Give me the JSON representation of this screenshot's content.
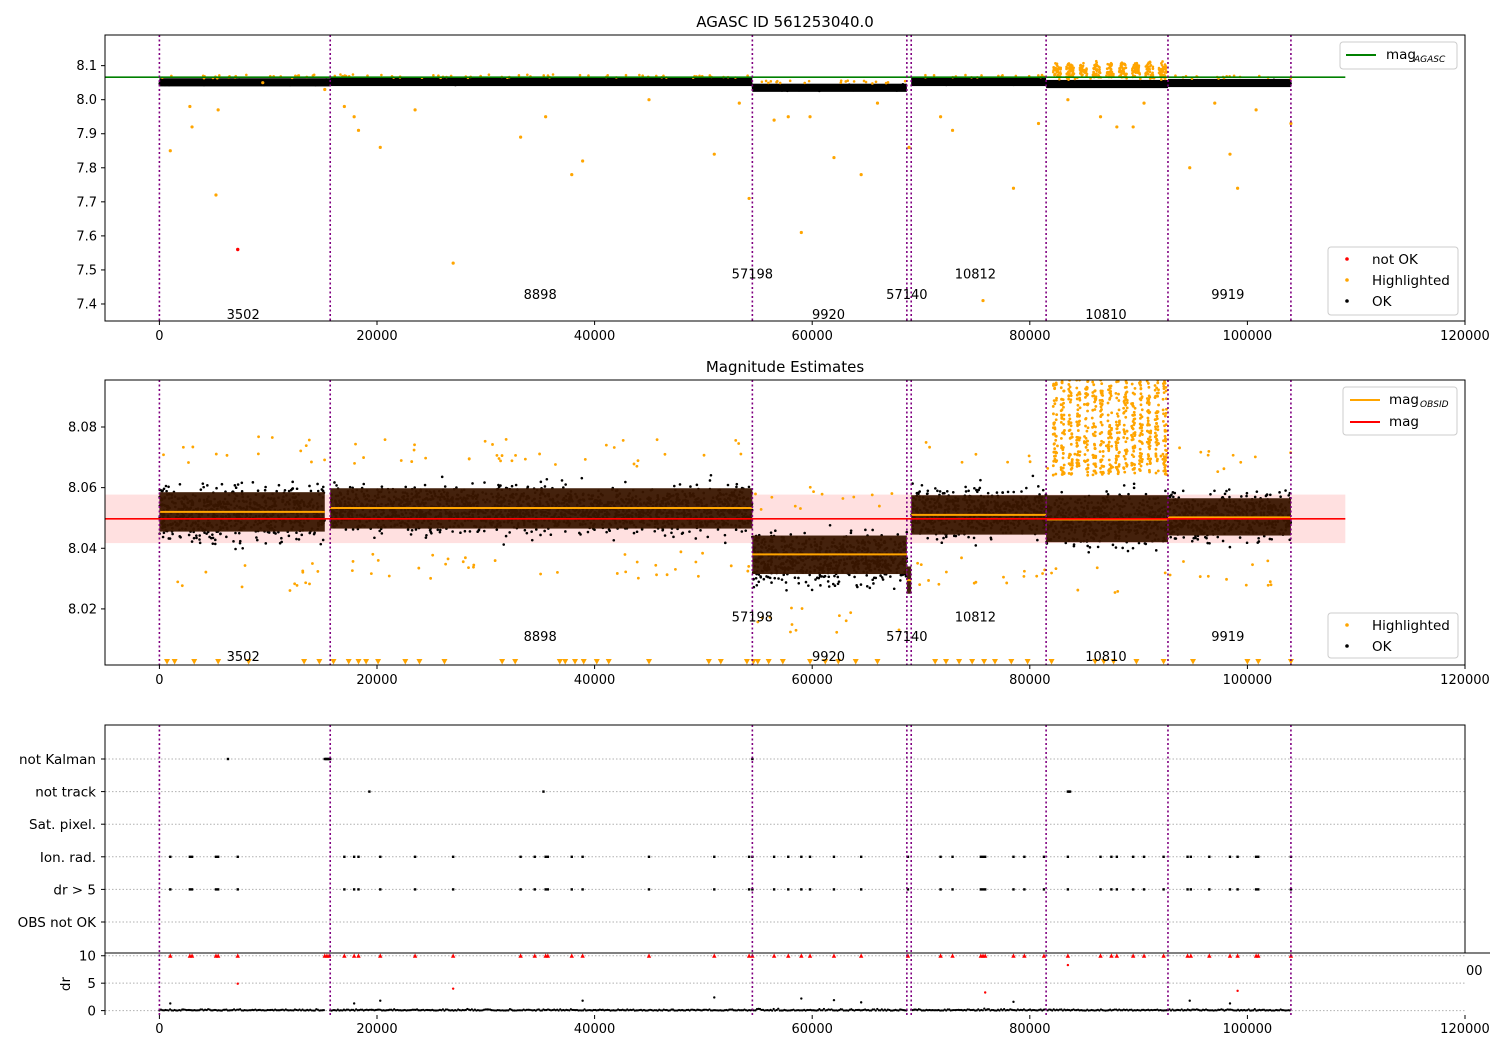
{
  "colors": {
    "ok": "#000000",
    "highlighted": "#ffa500",
    "not_ok": "#ff0000",
    "obsid_line": "#800080",
    "mag_agasc": "#008000",
    "mag_obsid": "#ffa500",
    "mag": "#ff0000",
    "mag_band": "#ffcccc",
    "obsid_band": "#3a1600",
    "grid": "#b0b0b0"
  },
  "chart_data": [
    {
      "type": "scatter",
      "title": "AGASC ID 561253040.0",
      "xlim": [
        -5000,
        120000
      ],
      "ylim": [
        7.35,
        8.19
      ],
      "x_ticks": [
        0,
        20000,
        40000,
        60000,
        80000,
        100000,
        120000
      ],
      "x_tick_labels": [
        "0",
        "20000",
        "40000",
        "60000",
        "80000",
        "100000",
        "120000"
      ],
      "y_ticks": [
        7.4,
        7.5,
        7.6,
        7.7,
        7.8,
        7.9,
        8.0,
        8.1
      ],
      "y_tick_labels": [
        "7.4",
        "7.5",
        "7.6",
        "7.7",
        "7.8",
        "7.9",
        "8.0",
        "8.1"
      ],
      "obsid_boundaries": [
        0,
        15700,
        54500,
        68700,
        69100,
        81500,
        92700,
        104000
      ],
      "obsid_labels": [
        {
          "label": "3502",
          "x": 7700,
          "y": 7.37
        },
        {
          "label": "8898",
          "x": 35000,
          "y": 7.43
        },
        {
          "label": "57198",
          "x": 54500,
          "y": 7.49
        },
        {
          "label": "9920",
          "x": 61500,
          "y": 7.37
        },
        {
          "label": "57140",
          "x": 68700,
          "y": 7.43
        },
        {
          "label": "10812",
          "x": 75000,
          "y": 7.49
        },
        {
          "label": "10810",
          "x": 87000,
          "y": 7.37
        },
        {
          "label": "9919",
          "x": 98200,
          "y": 7.43
        }
      ],
      "bands": [
        {
          "x0": 0,
          "x1": 15700,
          "center": 8.051,
          "spread": 0.012
        },
        {
          "x0": 15700,
          "x1": 54500,
          "center": 8.052,
          "spread": 0.012
        },
        {
          "x0": 54500,
          "x1": 68700,
          "center": 8.035,
          "spread": 0.012
        },
        {
          "x0": 69100,
          "x1": 81500,
          "center": 8.052,
          "spread": 0.012
        },
        {
          "x0": 81500,
          "x1": 92700,
          "center": 8.046,
          "spread": 0.012
        },
        {
          "x0": 92700,
          "x1": 104000,
          "center": 8.049,
          "spread": 0.012
        }
      ],
      "lines": [
        {
          "name": "mag_{AGASC}",
          "y": 8.066,
          "x0": -5000,
          "x1": 109000
        }
      ],
      "highlighted_points": [
        [
          1000,
          7.85
        ],
        [
          2800,
          7.98
        ],
        [
          3000,
          7.92
        ],
        [
          5200,
          7.72
        ],
        [
          5400,
          7.97
        ],
        [
          9500,
          8.05
        ],
        [
          15200,
          8.03
        ],
        [
          17000,
          7.98
        ],
        [
          17900,
          7.95
        ],
        [
          18300,
          7.91
        ],
        [
          20300,
          7.86
        ],
        [
          23500,
          7.97
        ],
        [
          27000,
          7.52
        ],
        [
          33200,
          7.89
        ],
        [
          35500,
          7.95
        ],
        [
          37900,
          7.78
        ],
        [
          38900,
          7.82
        ],
        [
          45000,
          8.0
        ],
        [
          51000,
          7.84
        ],
        [
          53300,
          7.99
        ],
        [
          54200,
          7.71
        ],
        [
          56500,
          7.94
        ],
        [
          57800,
          7.95
        ],
        [
          59000,
          7.61
        ],
        [
          59800,
          7.95
        ],
        [
          62000,
          7.83
        ],
        [
          64500,
          7.78
        ],
        [
          66000,
          7.99
        ],
        [
          68900,
          7.86
        ],
        [
          71800,
          7.95
        ],
        [
          72900,
          7.91
        ],
        [
          75700,
          7.41
        ],
        [
          78500,
          7.74
        ],
        [
          80800,
          7.93
        ],
        [
          83500,
          8.0
        ],
        [
          86500,
          7.95
        ],
        [
          88000,
          7.92
        ],
        [
          89500,
          7.92
        ],
        [
          90500,
          7.99
        ],
        [
          94700,
          7.8
        ],
        [
          97000,
          7.99
        ],
        [
          98400,
          7.84
        ],
        [
          99100,
          7.74
        ],
        [
          100800,
          7.97
        ],
        [
          104000,
          7.93
        ]
      ],
      "not_ok_points": [
        [
          7200,
          7.56
        ]
      ],
      "spike_segment": {
        "x0": 82000,
        "x1": 92700,
        "top": 8.115
      },
      "legend_lines": [
        {
          "label": "mag",
          "sub": "AGASC"
        }
      ],
      "legend_markers": [
        {
          "label": "not OK",
          "color_key": "not_ok"
        },
        {
          "label": "Highlighted",
          "color_key": "highlighted"
        },
        {
          "label": "OK",
          "color_key": "ok"
        }
      ]
    },
    {
      "type": "scatter",
      "title": "Magnitude Estimates",
      "xlim": [
        -5000,
        120000
      ],
      "ylim": [
        8.0015,
        8.0955
      ],
      "x_ticks": [
        0,
        20000,
        40000,
        60000,
        80000,
        100000,
        120000
      ],
      "x_tick_labels": [
        "0",
        "20000",
        "40000",
        "60000",
        "80000",
        "100000",
        "120000"
      ],
      "y_ticks": [
        8.02,
        8.04,
        8.06,
        8.08
      ],
      "y_tick_labels": [
        "8.02",
        "8.04",
        "8.06",
        "8.08"
      ],
      "obsid_boundaries": [
        0,
        15700,
        54500,
        68700,
        69100,
        81500,
        92700,
        104000
      ],
      "obsid_labels": [
        {
          "label": "3502",
          "x": 7700,
          "y": 8.0045
        },
        {
          "label": "8898",
          "x": 35000,
          "y": 8.011
        },
        {
          "label": "57198",
          "x": 54500,
          "y": 8.0175
        },
        {
          "label": "9920",
          "x": 61500,
          "y": 8.0045
        },
        {
          "label": "57140",
          "x": 68700,
          "y": 8.011
        },
        {
          "label": "10812",
          "x": 75000,
          "y": 8.0175
        },
        {
          "label": "10810",
          "x": 87000,
          "y": 8.0045
        },
        {
          "label": "9919",
          "x": 98200,
          "y": 8.011
        }
      ],
      "mag": {
        "value": 8.0497,
        "band": [
          8.0417,
          8.0577
        ],
        "x0": -5000,
        "x1": 109000
      },
      "mag_obsid": [
        {
          "x0": 0,
          "x1": 15200,
          "value": 8.052,
          "band": [
            8.0455,
            8.0585
          ]
        },
        {
          "x0": 15700,
          "x1": 54500,
          "value": 8.0533,
          "band": [
            8.0465,
            8.0598
          ]
        },
        {
          "x0": 54500,
          "x1": 68700,
          "value": 8.038,
          "band": [
            8.0315,
            8.0442
          ]
        },
        {
          "x0": 68700,
          "x1": 69100,
          "value": 8.0295,
          "band": [
            8.025,
            8.034
          ]
        },
        {
          "x0": 69100,
          "x1": 81500,
          "value": 8.051,
          "band": [
            8.0445,
            8.0575
          ]
        },
        {
          "x0": 81500,
          "x1": 92700,
          "value": 8.0495,
          "band": [
            8.042,
            8.0575
          ]
        },
        {
          "x0": 92700,
          "x1": 104000,
          "value": 8.0502,
          "band": [
            8.0442,
            8.0565
          ]
        }
      ],
      "clouds": [
        {
          "x0": 0,
          "x1": 15200,
          "lo": 8.035,
          "hi": 8.068
        },
        {
          "x0": 15700,
          "x1": 54500,
          "lo": 8.039,
          "hi": 8.067
        },
        {
          "x0": 54500,
          "x1": 68700,
          "lo": 8.021,
          "hi": 8.052
        },
        {
          "x0": 69100,
          "x1": 81500,
          "lo": 8.037,
          "hi": 8.067
        },
        {
          "x0": 81500,
          "x1": 92700,
          "lo": 8.034,
          "hi": 8.065
        },
        {
          "x0": 92700,
          "x1": 104000,
          "lo": 8.036,
          "hi": 8.065
        }
      ],
      "spike_segment": {
        "x0": 82000,
        "x1": 92700,
        "lo": 8.064,
        "hi": 8.0955
      },
      "low_triangles_y": 8.0025,
      "low_triangles_x": [
        700,
        1400,
        3200,
        5400,
        8200,
        13300,
        14700,
        16000,
        17400,
        18300,
        19000,
        20100,
        22600,
        23900,
        26200,
        31500,
        32700,
        36800,
        37300,
        38200,
        39000,
        40200,
        41300,
        45000,
        50500,
        51600,
        54000,
        54600,
        55000,
        56000,
        57300,
        59800,
        61200,
        62400,
        64000,
        66000,
        71300,
        72300,
        73500,
        74700,
        75800,
        76800,
        78300,
        79800,
        82000,
        86000,
        86800,
        87700,
        89800,
        92300,
        95000,
        100000,
        101000,
        104000
      ],
      "legend_lines": [
        {
          "label": "mag",
          "sub": "OBSID",
          "color_key": "mag_obsid"
        },
        {
          "label": "mag",
          "sub": "",
          "color_key": "mag"
        }
      ],
      "legend_markers": [
        {
          "label": "Highlighted",
          "color_key": "highlighted"
        },
        {
          "label": "OK",
          "color_key": "ok"
        }
      ]
    },
    {
      "type": "scatter",
      "title": "",
      "xlim": [
        -5000,
        120000
      ],
      "x_ticks": [
        0,
        20000,
        40000,
        60000,
        80000,
        100000,
        120000
      ],
      "x_tick_labels": [
        "0",
        "20000",
        "40000",
        "60000",
        "80000",
        "100000",
        "120000"
      ],
      "overlap_tick_label": "00",
      "obsid_boundaries": [
        0,
        15700,
        54500,
        68700,
        69100,
        81500,
        92700,
        104000
      ],
      "flag_rows": [
        "not Kalman",
        "not track",
        "Sat. pixel.",
        "Ion. rad.",
        "dr > 5",
        "OBS not OK"
      ],
      "flag_points": {
        "not Kalman": [
          6300,
          15200,
          15300,
          15400,
          15500,
          15600,
          15700,
          54500
        ],
        "not track": [
          19300,
          35300,
          83500,
          83600,
          83700
        ],
        "Sat. pixel.": [],
        "Ion. rad.": [
          1000,
          2800,
          3000,
          5200,
          5400,
          7200,
          17000,
          17900,
          18300,
          20300,
          23500,
          27000,
          33200,
          34500,
          35500,
          35700,
          37900,
          38900,
          45000,
          51000,
          54200,
          54500,
          56500,
          57800,
          59000,
          59800,
          62000,
          64500,
          68800,
          71800,
          72900,
          75500,
          75700,
          75900,
          78500,
          79500,
          81300,
          83500,
          86500,
          87500,
          88000,
          89500,
          90500,
          92300,
          94500,
          94800,
          96500,
          98400,
          99100,
          100800,
          101000,
          104000
        ],
        "dr > 5": [
          1000,
          2800,
          3000,
          5200,
          5400,
          7200,
          17000,
          17900,
          18300,
          20300,
          23500,
          27000,
          33200,
          34500,
          35500,
          35700,
          37900,
          38900,
          45000,
          51000,
          54200,
          54500,
          56500,
          57800,
          59000,
          59800,
          62000,
          64500,
          68800,
          71800,
          72900,
          75500,
          75700,
          75900,
          78500,
          79500,
          81300,
          83500,
          86500,
          87500,
          88000,
          89500,
          90500,
          92300,
          94500,
          94800,
          96500,
          98400,
          99100,
          100800,
          101000,
          104000
        ],
        "OBS not OK": []
      },
      "dr_ylabel": "dr",
      "dr_ylim": [
        -0.8,
        10.5
      ],
      "dr_ticks": [
        0,
        5,
        10
      ],
      "dr_tick_labels": [
        "0",
        "5",
        "10"
      ],
      "dr_clipped_x": [
        1000,
        2800,
        3000,
        5200,
        5400,
        7200,
        15200,
        15400,
        15600,
        17000,
        17900,
        18300,
        20300,
        23500,
        27000,
        33200,
        34500,
        35500,
        35700,
        37900,
        38900,
        45000,
        51000,
        54200,
        54500,
        56500,
        57800,
        59000,
        59800,
        62000,
        64500,
        68800,
        71800,
        72900,
        75500,
        75700,
        75900,
        78500,
        79500,
        81300,
        83500,
        86500,
        87500,
        88000,
        89500,
        90500,
        92300,
        94500,
        94800,
        96500,
        98400,
        99100,
        100800,
        101000,
        104000
      ],
      "dr_mid_points": [
        [
          7200,
          4.9
        ],
        [
          27000,
          4.0
        ],
        [
          75900,
          3.3
        ],
        [
          83500,
          8.3
        ],
        [
          99100,
          3.6
        ]
      ],
      "dr_low_points": [
        [
          1000,
          1.3
        ],
        [
          17900,
          1.3
        ],
        [
          20300,
          1.8
        ],
        [
          38900,
          1.8
        ],
        [
          51000,
          2.4
        ],
        [
          59000,
          2.2
        ],
        [
          62000,
          1.9
        ],
        [
          64500,
          1.5
        ],
        [
          78500,
          1.6
        ],
        [
          94700,
          1.8
        ],
        [
          98400,
          1.3
        ]
      ]
    }
  ]
}
